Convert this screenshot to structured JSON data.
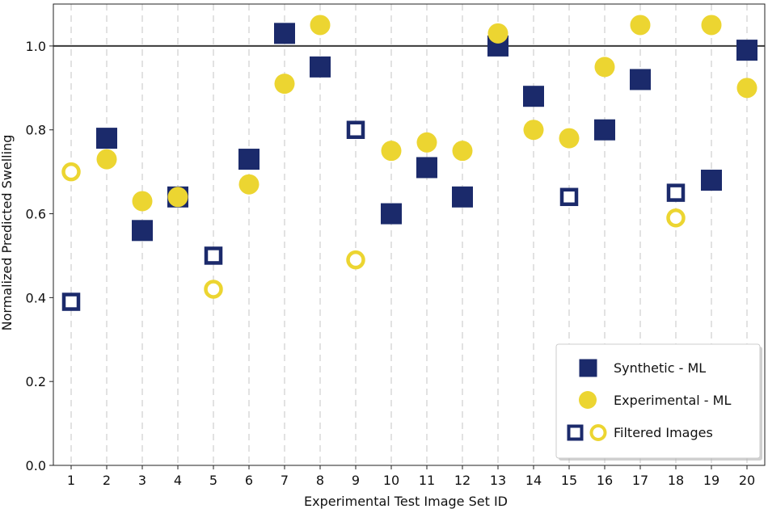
{
  "chart_data": {
    "type": "scatter",
    "title": "",
    "xlabel": "Experimental Test Image Set ID",
    "ylabel": "Normalized Predicted Swelling",
    "x_ticks": [
      "1",
      "2",
      "3",
      "4",
      "5",
      "6",
      "7",
      "8",
      "9",
      "10",
      "11",
      "12",
      "13",
      "14",
      "15",
      "16",
      "17",
      "18",
      "19",
      "20"
    ],
    "y_ticks": [
      "0.0",
      "0.2",
      "0.4",
      "0.6",
      "0.8",
      "1.0"
    ],
    "xlim": [
      0.5,
      20.5
    ],
    "ylim": [
      0.0,
      1.1
    ],
    "reference_line": 1.0,
    "grid": "vertical dashed",
    "legend_position": "lower-right",
    "series": [
      {
        "name": "Synthetic - ML",
        "marker": "square",
        "color": "#1b2a6b",
        "x": [
          1,
          2,
          3,
          4,
          5,
          6,
          7,
          8,
          9,
          10,
          11,
          12,
          13,
          14,
          15,
          16,
          17,
          18,
          19,
          20
        ],
        "y": [
          0.39,
          0.78,
          0.56,
          0.64,
          0.5,
          0.73,
          1.03,
          0.95,
          0.8,
          0.6,
          0.71,
          0.64,
          1.0,
          0.88,
          0.64,
          0.8,
          0.92,
          0.65,
          0.68,
          0.99
        ],
        "filtered": [
          true,
          false,
          false,
          false,
          true,
          false,
          false,
          false,
          true,
          false,
          false,
          false,
          false,
          false,
          true,
          false,
          false,
          true,
          false,
          false
        ]
      },
      {
        "name": "Experimental - ML",
        "marker": "circle",
        "color": "#ecd531",
        "x": [
          1,
          2,
          3,
          4,
          5,
          6,
          7,
          8,
          9,
          10,
          11,
          12,
          13,
          14,
          15,
          16,
          17,
          18,
          19,
          20
        ],
        "y": [
          0.7,
          0.73,
          0.63,
          0.64,
          0.42,
          0.67,
          0.91,
          1.05,
          0.49,
          0.75,
          0.77,
          0.75,
          1.03,
          0.8,
          0.78,
          0.95,
          1.05,
          0.59,
          1.05,
          0.9
        ],
        "filtered": [
          true,
          false,
          false,
          false,
          true,
          false,
          false,
          false,
          true,
          false,
          false,
          false,
          false,
          false,
          false,
          false,
          false,
          true,
          false,
          false
        ]
      }
    ],
    "legend": {
      "synthetic_label": "Synthetic - ML",
      "experimental_label": "Experimental - ML",
      "filtered_label": "Filtered Images"
    }
  }
}
